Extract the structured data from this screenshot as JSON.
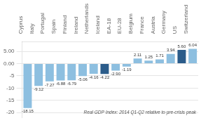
{
  "chart_data": {
    "type": "bar",
    "categories": [
      "Cyprus",
      "Italy",
      "Portugal",
      "Spain",
      "Finland",
      "Ireland",
      "Netherlands",
      "Iceland",
      "EA-18",
      "EU-28",
      "Belgium",
      "France",
      "Austria",
      "Germany",
      "US",
      "Switzerland"
    ],
    "values": [
      -18.15,
      -9.12,
      -7.27,
      -6.88,
      -6.79,
      -5.06,
      -4.16,
      -4.22,
      -2.9,
      -1.19,
      2.11,
      1.25,
      1.71,
      3.94,
      5.6,
      6.04
    ],
    "value_labels": [
      "-18.15",
      "-9.12",
      "-7.27",
      "-6.88",
      "-6.79",
      "-5.06",
      "-4.16",
      "-4.22",
      "-2.90",
      "-1.19",
      "2.11",
      "1.25",
      "1.71",
      "3.94",
      "5.60",
      "6.04"
    ],
    "colors": [
      "#8dbfe0",
      "#8dbfe0",
      "#8dbfe0",
      "#8dbfe0",
      "#8dbfe0",
      "#8dbfe0",
      "#8dbfe0",
      "#2b5c8a",
      "#8dbfe0",
      "#8dbfe0",
      "#8dbfe0",
      "#8dbfe0",
      "#8dbfe0",
      "#8dbfe0",
      "#2b5c8a",
      "#8dbfe0"
    ],
    "ylim": [
      -22,
      9
    ],
    "yticks": [
      -20,
      -15,
      -10,
      -5,
      {
        "value": 0,
        "label": "0.00"
      },
      {
        "value": 5,
        "label": "5.00"
      }
    ],
    "annotation": "Real GDP Index: 2014 Q1-Q2 relative to pre-crisis peak",
    "grid": true,
    "data_labels": true
  }
}
